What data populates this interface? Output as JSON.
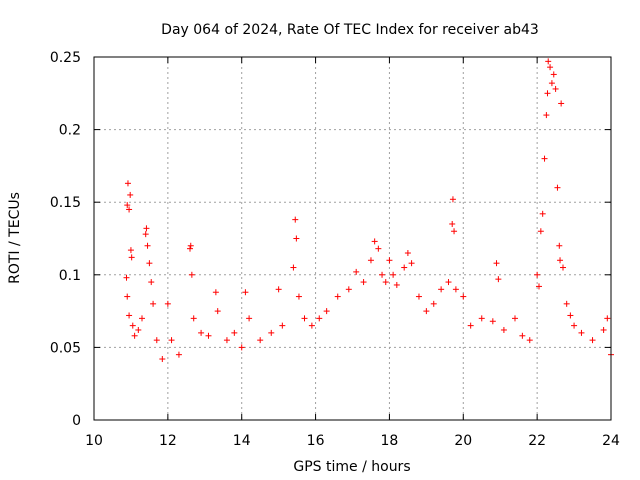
{
  "chart_data": {
    "type": "scatter",
    "title": "Day 064 of 2024, Rate Of TEC Index for receiver ab43",
    "xlabel": "GPS time / hours",
    "ylabel": "ROTI / TECUs",
    "xlim": [
      10,
      24
    ],
    "ylim": [
      0,
      0.25
    ],
    "xticks": [
      10,
      12,
      14,
      16,
      18,
      20,
      22,
      24
    ],
    "yticks": [
      0,
      0.05,
      0.1,
      0.15,
      0.2,
      0.25
    ],
    "xtick_labels": [
      "10",
      "12",
      "14",
      "16",
      "18",
      "20",
      "22",
      "24"
    ],
    "ytick_labels": [
      "0",
      "0.05",
      "0.1",
      "0.15",
      "0.2",
      "0.25"
    ],
    "grid": true,
    "marker": "+",
    "color": "#ff0000",
    "series": [
      {
        "name": "ROTI",
        "points": [
          [
            10.9,
            0.148
          ],
          [
            10.92,
            0.163
          ],
          [
            10.95,
            0.145
          ],
          [
            10.98,
            0.155
          ],
          [
            11.0,
            0.117
          ],
          [
            11.02,
            0.112
          ],
          [
            10.88,
            0.098
          ],
          [
            10.9,
            0.085
          ],
          [
            10.95,
            0.072
          ],
          [
            11.05,
            0.065
          ],
          [
            11.1,
            0.058
          ],
          [
            11.2,
            0.062
          ],
          [
            11.3,
            0.07
          ],
          [
            11.4,
            0.128
          ],
          [
            11.42,
            0.132
          ],
          [
            11.45,
            0.12
          ],
          [
            11.5,
            0.108
          ],
          [
            11.55,
            0.095
          ],
          [
            11.6,
            0.08
          ],
          [
            11.7,
            0.055
          ],
          [
            11.85,
            0.042
          ],
          [
            12.0,
            0.08
          ],
          [
            12.1,
            0.055
          ],
          [
            12.3,
            0.045
          ],
          [
            12.6,
            0.118
          ],
          [
            12.62,
            0.12
          ],
          [
            12.65,
            0.1
          ],
          [
            12.7,
            0.07
          ],
          [
            12.9,
            0.06
          ],
          [
            13.1,
            0.058
          ],
          [
            13.3,
            0.088
          ],
          [
            13.35,
            0.075
          ],
          [
            13.6,
            0.055
          ],
          [
            13.8,
            0.06
          ],
          [
            14.0,
            0.05
          ],
          [
            14.1,
            0.088
          ],
          [
            14.2,
            0.07
          ],
          [
            14.5,
            0.055
          ],
          [
            14.8,
            0.06
          ],
          [
            15.0,
            0.09
          ],
          [
            15.1,
            0.065
          ],
          [
            15.4,
            0.105
          ],
          [
            15.45,
            0.138
          ],
          [
            15.48,
            0.125
          ],
          [
            15.55,
            0.085
          ],
          [
            15.7,
            0.07
          ],
          [
            15.9,
            0.065
          ],
          [
            16.1,
            0.07
          ],
          [
            16.3,
            0.075
          ],
          [
            16.6,
            0.085
          ],
          [
            16.9,
            0.09
          ],
          [
            17.1,
            0.102
          ],
          [
            17.3,
            0.095
          ],
          [
            17.5,
            0.11
          ],
          [
            17.6,
            0.123
          ],
          [
            17.7,
            0.118
          ],
          [
            17.8,
            0.1
          ],
          [
            17.9,
            0.095
          ],
          [
            18.0,
            0.11
          ],
          [
            18.1,
            0.1
          ],
          [
            18.2,
            0.093
          ],
          [
            18.4,
            0.105
          ],
          [
            18.5,
            0.115
          ],
          [
            18.6,
            0.108
          ],
          [
            18.8,
            0.085
          ],
          [
            19.0,
            0.075
          ],
          [
            19.2,
            0.08
          ],
          [
            19.4,
            0.09
          ],
          [
            19.6,
            0.095
          ],
          [
            19.7,
            0.135
          ],
          [
            19.72,
            0.152
          ],
          [
            19.75,
            0.13
          ],
          [
            19.8,
            0.09
          ],
          [
            20.0,
            0.085
          ],
          [
            20.2,
            0.065
          ],
          [
            20.5,
            0.07
          ],
          [
            20.8,
            0.068
          ],
          [
            20.9,
            0.108
          ],
          [
            20.95,
            0.097
          ],
          [
            21.1,
            0.062
          ],
          [
            21.4,
            0.07
          ],
          [
            21.6,
            0.058
          ],
          [
            21.8,
            0.055
          ],
          [
            22.0,
            0.1
          ],
          [
            22.05,
            0.092
          ],
          [
            22.1,
            0.13
          ],
          [
            22.15,
            0.142
          ],
          [
            22.2,
            0.18
          ],
          [
            22.25,
            0.21
          ],
          [
            22.28,
            0.225
          ],
          [
            22.3,
            0.247
          ],
          [
            22.35,
            0.243
          ],
          [
            22.4,
            0.232
          ],
          [
            22.45,
            0.238
          ],
          [
            22.5,
            0.228
          ],
          [
            22.55,
            0.16
          ],
          [
            22.6,
            0.12
          ],
          [
            22.62,
            0.11
          ],
          [
            22.65,
            0.218
          ],
          [
            22.7,
            0.105
          ],
          [
            22.8,
            0.08
          ],
          [
            22.9,
            0.072
          ],
          [
            23.0,
            0.065
          ],
          [
            23.2,
            0.06
          ],
          [
            23.5,
            0.055
          ],
          [
            23.8,
            0.062
          ],
          [
            23.9,
            0.07
          ],
          [
            24.0,
            0.045
          ]
        ]
      }
    ]
  }
}
